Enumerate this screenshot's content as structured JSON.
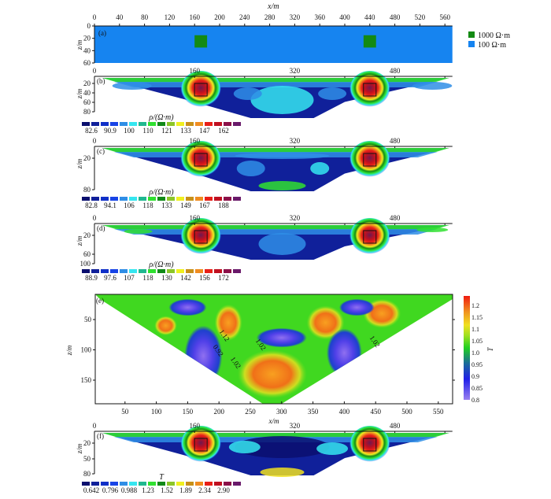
{
  "chart_data": [
    {
      "type": "heatmap",
      "panel_label": "(a)",
      "title": "x/m",
      "xlabel": "x/m",
      "ylabel": "z/m",
      "xticks": [
        "0",
        "40",
        "80",
        "120",
        "160",
        "200",
        "240",
        "280",
        "320",
        "360",
        "400",
        "440",
        "480",
        "520",
        "560"
      ],
      "xtick_values": [
        0,
        40,
        80,
        120,
        160,
        200,
        240,
        280,
        320,
        360,
        400,
        440,
        480,
        520,
        560
      ],
      "zticks": [
        "0",
        "20",
        "40",
        "60"
      ],
      "ztick_values": [
        0,
        20,
        40,
        60
      ],
      "xlim": [
        0,
        572
      ],
      "zlim": [
        0,
        60
      ],
      "legend": [
        {
          "label": "1000 Ω·m",
          "color": "#138a13"
        },
        {
          "label": "100 Ω·m",
          "color": "#1684f0"
        }
      ],
      "blocks": [
        {
          "x": [
            160,
            180
          ],
          "z": [
            15,
            35
          ],
          "value": 1000
        },
        {
          "x": [
            430,
            450
          ],
          "z": [
            15,
            35
          ],
          "value": 1000
        }
      ],
      "background_value": 100
    },
    {
      "type": "heatmap",
      "panel_label": "(b)",
      "ylabel": "z/m",
      "xticks": [
        "0",
        "160",
        "320",
        "480"
      ],
      "xtick_values": [
        0,
        160,
        320,
        480
      ],
      "zticks": [
        "20",
        "40",
        "60",
        "80"
      ],
      "ztick_values": [
        20,
        40,
        60,
        80
      ],
      "zlim": [
        0,
        90
      ],
      "colorbar_title": "ρ/(Ω·m)",
      "colorbar_labels": [
        "82.6",
        "90.9",
        "100",
        "110",
        "121",
        "133",
        "147",
        "162"
      ]
    },
    {
      "type": "heatmap",
      "panel_label": "(c)",
      "ylabel": "z/m",
      "xticks": [
        "0",
        "160",
        "320",
        "480"
      ],
      "xtick_values": [
        0,
        160,
        320,
        480
      ],
      "zticks": [
        "20",
        "80"
      ],
      "ztick_values": [
        20,
        80
      ],
      "zlim": [
        0,
        85
      ],
      "colorbar_title": "ρ/(Ω·m)",
      "colorbar_labels": [
        "82.8",
        "94.1",
        "106",
        "118",
        "133",
        "149",
        "167",
        "188"
      ]
    },
    {
      "type": "heatmap",
      "panel_label": "(d)",
      "ylabel": "z/m",
      "xticks": [
        "0",
        "160",
        "320",
        "480"
      ],
      "xtick_values": [
        0,
        160,
        320,
        480
      ],
      "zticks": [
        "20",
        "60",
        "100"
      ],
      "ztick_values": [
        20,
        60,
        100
      ],
      "zlim": [
        0,
        100
      ],
      "colorbar_title": "ρ/(Ω·m)",
      "colorbar_labels": [
        "88.9",
        "97.6",
        "107",
        "118",
        "130",
        "142",
        "156",
        "172"
      ]
    },
    {
      "type": "heatmap",
      "panel_label": "(e)",
      "xlabel": "x/m",
      "ylabel": "z/m",
      "xticks": [
        "50",
        "100",
        "150",
        "200",
        "250",
        "300",
        "350",
        "400",
        "450",
        "500",
        "550"
      ],
      "xtick_values": [
        50,
        100,
        150,
        200,
        250,
        300,
        350,
        400,
        450,
        500,
        550
      ],
      "zticks": [
        "50",
        "100",
        "150"
      ],
      "ztick_values": [
        50,
        100,
        150
      ],
      "xlim": [
        0,
        572
      ],
      "zlim": [
        10,
        190
      ],
      "colorbar_title": "T",
      "colorbar_labels": [
        "1.2",
        "1.15",
        "1.1",
        "1.05",
        "1.0",
        "0.95",
        "0.9",
        "0.85",
        "0.8"
      ],
      "colorbar_values": [
        1.2,
        1.15,
        1.1,
        1.05,
        1.0,
        0.95,
        0.9,
        0.85,
        0.8
      ],
      "colorbar_range": [
        0.8,
        1.24
      ],
      "contour_labels": [
        {
          "text": "1.12",
          "x": 200,
          "z": 70
        },
        {
          "text": "0.92",
          "x": 190,
          "z": 95
        },
        {
          "text": "1.02",
          "x": 218,
          "z": 115
        },
        {
          "text": "1.02",
          "x": 258,
          "z": 85
        },
        {
          "text": "1.02",
          "x": 440,
          "z": 80
        }
      ]
    },
    {
      "type": "heatmap",
      "panel_label": "(f)",
      "ylabel": "z/m",
      "xticks": [
        "0",
        "160",
        "320",
        "480"
      ],
      "xtick_values": [
        0,
        160,
        320,
        480
      ],
      "zticks": [
        "20",
        "50",
        "80"
      ],
      "ztick_values": [
        20,
        50,
        80
      ],
      "zlim": [
        0,
        85
      ],
      "colorbar_title": "T",
      "colorbar_labels": [
        "0.642",
        "0.796",
        "0.988",
        "1.23",
        "1.52",
        "1.89",
        "2.34",
        "2.90"
      ]
    }
  ],
  "discrete_palette": [
    "#0a0f6e",
    "#10209a",
    "#1030c8",
    "#1844e6",
    "#2f8ee6",
    "#35e6f0",
    "#20b890",
    "#30e030",
    "#118a18",
    "#8cc628",
    "#f0f020",
    "#c89018",
    "#f08c20",
    "#e82018",
    "#c01020",
    "#8c1048",
    "#6a1a6a"
  ],
  "anomaly_color": "#6e1850"
}
